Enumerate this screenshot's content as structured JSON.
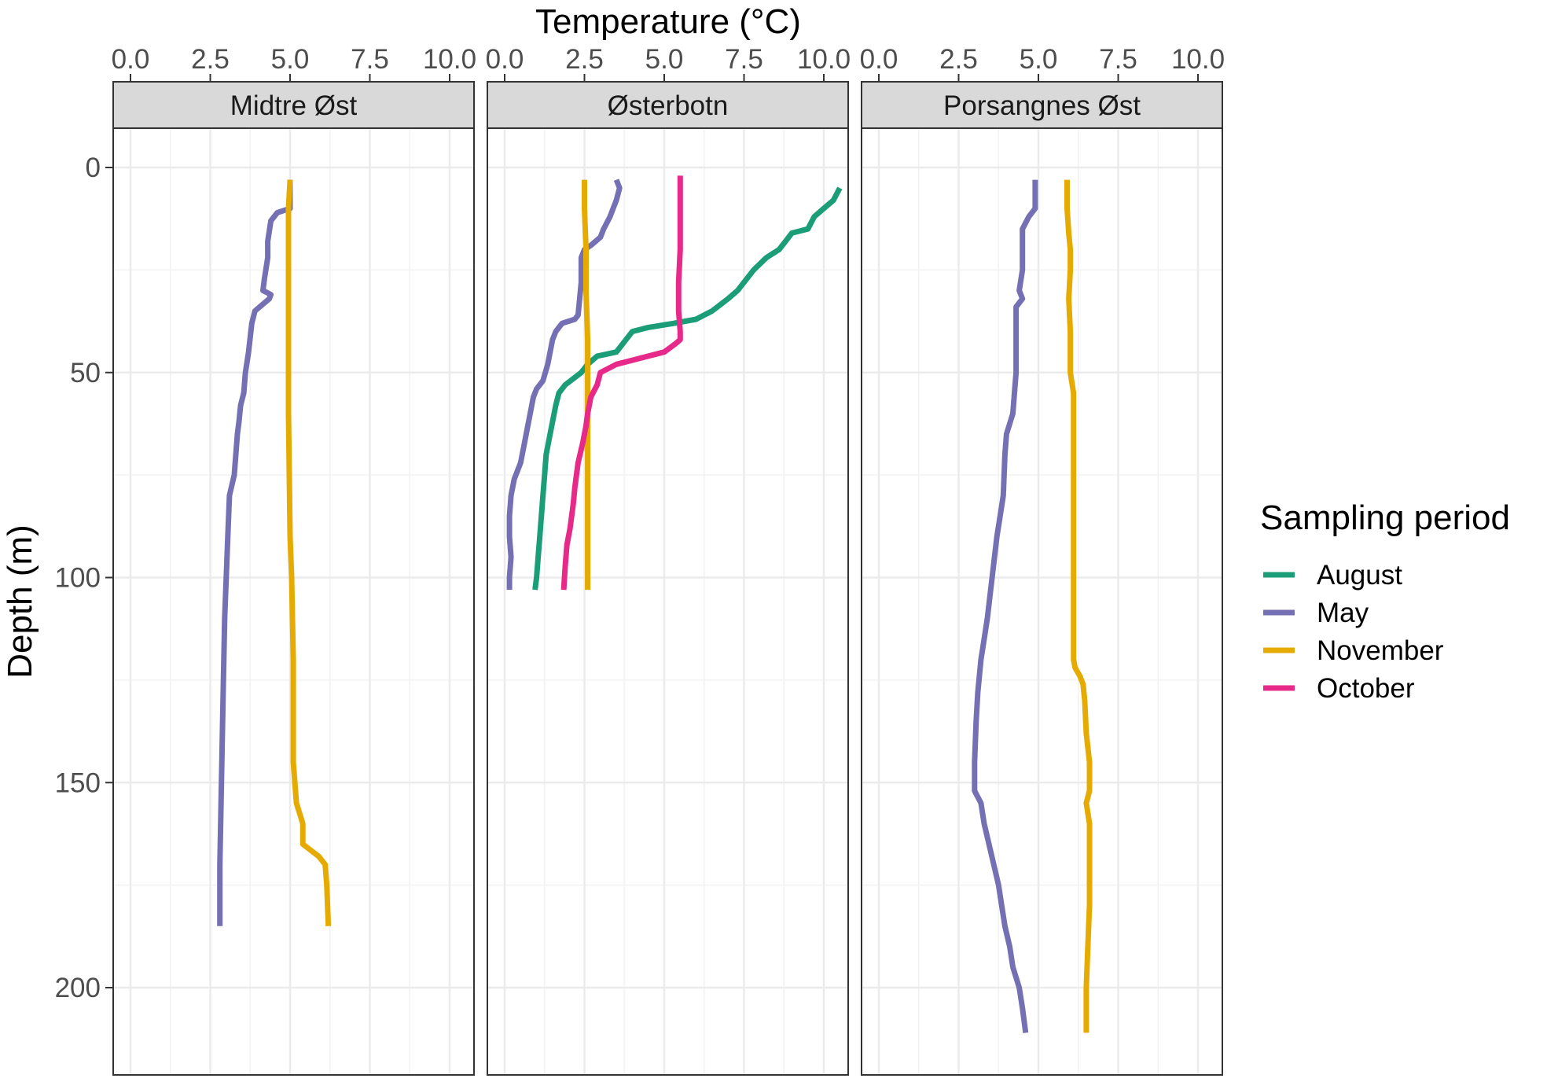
{
  "chart_data": {
    "type": "line",
    "xlabel": "Temperature (°C)",
    "ylabel": "Depth (m)",
    "xlim": [
      -0.3,
      11.1
    ],
    "ylim": [
      -11,
      220
    ],
    "y_reversed": true,
    "x_ticks": [
      0.0,
      2.5,
      5.0,
      7.5,
      10.0
    ],
    "x_tick_labels": [
      "0.0",
      "2.5",
      "5.0",
      "7.5",
      "10.0"
    ],
    "y_ticks": [
      0,
      50,
      100,
      150,
      200
    ],
    "y_tick_labels": [
      "0",
      "50",
      "100",
      "150",
      "200"
    ],
    "x_axis_position": "top",
    "grid": true,
    "legend": {
      "title": "Sampling period",
      "position": "right",
      "items": [
        {
          "name": "August",
          "color": "#1b9e77"
        },
        {
          "name": "May",
          "color": "#7570b3"
        },
        {
          "name": "November",
          "color": "#e6ab02"
        },
        {
          "name": "October",
          "color": "#e7298a"
        }
      ]
    },
    "panels": [
      {
        "label": "Midtre Øst",
        "series": [
          {
            "name": "May",
            "points": [
              [
                5.0,
                3
              ],
              [
                5.0,
                10
              ],
              [
                4.6,
                11
              ],
              [
                4.4,
                13
              ],
              [
                4.3,
                18
              ],
              [
                4.3,
                22
              ],
              [
                4.2,
                27
              ],
              [
                4.15,
                30
              ],
              [
                4.4,
                31
              ],
              [
                4.35,
                32
              ],
              [
                3.9,
                35
              ],
              [
                3.8,
                38
              ],
              [
                3.7,
                45
              ],
              [
                3.6,
                50
              ],
              [
                3.55,
                55
              ],
              [
                3.45,
                58
              ],
              [
                3.4,
                62
              ],
              [
                3.35,
                65
              ],
              [
                3.3,
                70
              ],
              [
                3.25,
                75
              ],
              [
                3.1,
                80
              ],
              [
                3.05,
                90
              ],
              [
                3.0,
                100
              ],
              [
                2.95,
                110
              ],
              [
                2.9,
                130
              ],
              [
                2.85,
                150
              ],
              [
                2.8,
                170
              ],
              [
                2.8,
                185
              ]
            ]
          },
          {
            "name": "November",
            "points": [
              [
                5.0,
                3
              ],
              [
                4.95,
                10
              ],
              [
                4.95,
                30
              ],
              [
                4.95,
                60
              ],
              [
                5.0,
                90
              ],
              [
                5.05,
                100
              ],
              [
                5.1,
                120
              ],
              [
                5.1,
                145
              ],
              [
                5.2,
                155
              ],
              [
                5.4,
                160
              ],
              [
                5.4,
                165
              ],
              [
                5.9,
                168
              ],
              [
                6.1,
                170
              ],
              [
                6.15,
                175
              ],
              [
                6.2,
                185
              ]
            ]
          }
        ]
      },
      {
        "label": "Østerbotn",
        "series": [
          {
            "name": "August",
            "points": [
              [
                10.5,
                5
              ],
              [
                10.3,
                8
              ],
              [
                10.0,
                10
              ],
              [
                9.7,
                12
              ],
              [
                9.5,
                15
              ],
              [
                9.0,
                16
              ],
              [
                8.8,
                18
              ],
              [
                8.6,
                20
              ],
              [
                8.2,
                22
              ],
              [
                7.8,
                25
              ],
              [
                7.5,
                28
              ],
              [
                7.3,
                30
              ],
              [
                7.0,
                32
              ],
              [
                6.5,
                35
              ],
              [
                6.0,
                37
              ],
              [
                5.3,
                38
              ],
              [
                4.5,
                39
              ],
              [
                4.0,
                40
              ],
              [
                3.8,
                42
              ],
              [
                3.5,
                45
              ],
              [
                2.9,
                46
              ],
              [
                2.6,
                48
              ],
              [
                2.4,
                50
              ],
              [
                1.9,
                53
              ],
              [
                1.7,
                55
              ],
              [
                1.6,
                58
              ],
              [
                1.5,
                62
              ],
              [
                1.4,
                66
              ],
              [
                1.3,
                70
              ],
              [
                1.25,
                75
              ],
              [
                1.2,
                80
              ],
              [
                1.1,
                90
              ],
              [
                1.05,
                95
              ],
              [
                1.0,
                100
              ],
              [
                0.95,
                103
              ]
            ]
          },
          {
            "name": "May",
            "points": [
              [
                3.5,
                3
              ],
              [
                3.6,
                5
              ],
              [
                3.5,
                8
              ],
              [
                3.4,
                10
              ],
              [
                3.3,
                12
              ],
              [
                3.1,
                15
              ],
              [
                3.0,
                17
              ],
              [
                2.7,
                19
              ],
              [
                2.5,
                20
              ],
              [
                2.4,
                22
              ],
              [
                2.4,
                28
              ],
              [
                2.35,
                32
              ],
              [
                2.3,
                36
              ],
              [
                2.2,
                37
              ],
              [
                1.8,
                38
              ],
              [
                1.6,
                40
              ],
              [
                1.5,
                42
              ],
              [
                1.4,
                46
              ],
              [
                1.35,
                48
              ],
              [
                1.2,
                52
              ],
              [
                1.0,
                54
              ],
              [
                0.9,
                56
              ],
              [
                0.8,
                60
              ],
              [
                0.7,
                64
              ],
              [
                0.6,
                68
              ],
              [
                0.5,
                72
              ],
              [
                0.3,
                76
              ],
              [
                0.2,
                80
              ],
              [
                0.15,
                85
              ],
              [
                0.15,
                90
              ],
              [
                0.2,
                95
              ],
              [
                0.15,
                100
              ],
              [
                0.15,
                103
              ]
            ]
          },
          {
            "name": "November",
            "points": [
              [
                2.5,
                3
              ],
              [
                2.5,
                10
              ],
              [
                2.55,
                20
              ],
              [
                2.55,
                30
              ],
              [
                2.6,
                42
              ],
              [
                2.6,
                44
              ],
              [
                2.6,
                50
              ],
              [
                2.6,
                60
              ],
              [
                2.6,
                70
              ],
              [
                2.6,
                80
              ],
              [
                2.6,
                90
              ],
              [
                2.6,
                100
              ],
              [
                2.6,
                103
              ]
            ]
          },
          {
            "name": "October",
            "points": [
              [
                5.5,
                2
              ],
              [
                5.5,
                10
              ],
              [
                5.5,
                20
              ],
              [
                5.45,
                28
              ],
              [
                5.45,
                35
              ],
              [
                5.5,
                40
              ],
              [
                5.5,
                42
              ],
              [
                5.35,
                43
              ],
              [
                5.0,
                45
              ],
              [
                4.5,
                46
              ],
              [
                4.0,
                47
              ],
              [
                3.5,
                48
              ],
              [
                3.0,
                50
              ],
              [
                2.9,
                53
              ],
              [
                2.7,
                56
              ],
              [
                2.6,
                60
              ],
              [
                2.55,
                63
              ],
              [
                2.45,
                67
              ],
              [
                2.3,
                72
              ],
              [
                2.2,
                78
              ],
              [
                2.15,
                82
              ],
              [
                2.05,
                88
              ],
              [
                1.95,
                92
              ],
              [
                1.9,
                97
              ],
              [
                1.85,
                103
              ]
            ]
          }
        ]
      },
      {
        "label": "Porsangnes Øst",
        "series": [
          {
            "name": "May",
            "points": [
              [
                4.9,
                3
              ],
              [
                4.9,
                8
              ],
              [
                4.9,
                10
              ],
              [
                4.7,
                12
              ],
              [
                4.5,
                15
              ],
              [
                4.5,
                25
              ],
              [
                4.4,
                30
              ],
              [
                4.5,
                32
              ],
              [
                4.3,
                34
              ],
              [
                4.3,
                40
              ],
              [
                4.3,
                50
              ],
              [
                4.25,
                55
              ],
              [
                4.2,
                60
              ],
              [
                4.0,
                65
              ],
              [
                3.95,
                70
              ],
              [
                3.9,
                80
              ],
              [
                3.8,
                85
              ],
              [
                3.7,
                90
              ],
              [
                3.55,
                100
              ],
              [
                3.4,
                110
              ],
              [
                3.3,
                115
              ],
              [
                3.2,
                120
              ],
              [
                3.1,
                128
              ],
              [
                3.05,
                135
              ],
              [
                3.0,
                145
              ],
              [
                3.0,
                152
              ],
              [
                3.2,
                155
              ],
              [
                3.3,
                160
              ],
              [
                3.45,
                165
              ],
              [
                3.6,
                170
              ],
              [
                3.75,
                175
              ],
              [
                3.85,
                180
              ],
              [
                3.95,
                185
              ],
              [
                4.1,
                190
              ],
              [
                4.2,
                195
              ],
              [
                4.4,
                200
              ],
              [
                4.5,
                205
              ],
              [
                4.6,
                211
              ]
            ]
          },
          {
            "name": "November",
            "points": [
              [
                5.9,
                3
              ],
              [
                5.9,
                10
              ],
              [
                5.95,
                16
              ],
              [
                6.0,
                20
              ],
              [
                6.0,
                25
              ],
              [
                5.95,
                32
              ],
              [
                6.0,
                40
              ],
              [
                6.0,
                50
              ],
              [
                6.1,
                55
              ],
              [
                6.1,
                70
              ],
              [
                6.1,
                90
              ],
              [
                6.1,
                110
              ],
              [
                6.1,
                120
              ],
              [
                6.15,
                122
              ],
              [
                6.3,
                124
              ],
              [
                6.4,
                126
              ],
              [
                6.45,
                130
              ],
              [
                6.5,
                138
              ],
              [
                6.6,
                145
              ],
              [
                6.6,
                152
              ],
              [
                6.5,
                155
              ],
              [
                6.6,
                160
              ],
              [
                6.6,
                170
              ],
              [
                6.6,
                180
              ],
              [
                6.55,
                190
              ],
              [
                6.5,
                200
              ],
              [
                6.5,
                211
              ]
            ]
          }
        ]
      }
    ]
  }
}
